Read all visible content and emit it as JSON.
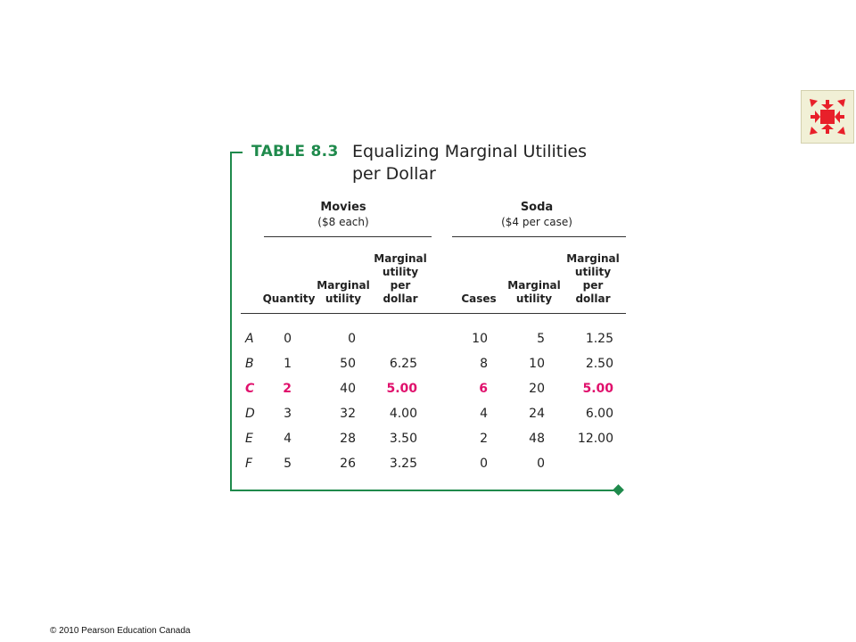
{
  "table": {
    "label": "TABLE  8.3",
    "title": "Equalizing Marginal Utilities per Dollar",
    "groups": {
      "movies": {
        "name": "Movies",
        "sub": "($8 each)"
      },
      "soda": {
        "name": "Soda",
        "sub": "($4 per case)"
      }
    },
    "columns": {
      "quantity": "Quantity",
      "mu_movies": [
        "Marginal",
        "utility"
      ],
      "mupd_movies": [
        "Marginal",
        "utility",
        "per",
        "dollar"
      ],
      "cases": "Cases",
      "mu_soda": [
        "Marginal",
        "utility"
      ],
      "mupd_soda": [
        "Marginal",
        "utility",
        "per",
        "dollar"
      ]
    },
    "rows": [
      {
        "letter": "A",
        "quantity": "0",
        "mu_movies": "0",
        "mupd_movies": "",
        "cases": "10",
        "mu_soda": "5",
        "mupd_soda": "1.25",
        "highlight": false
      },
      {
        "letter": "B",
        "quantity": "1",
        "mu_movies": "50",
        "mupd_movies": "6.25",
        "cases": "8",
        "mu_soda": "10",
        "mupd_soda": "2.50",
        "highlight": false
      },
      {
        "letter": "C",
        "quantity": "2",
        "mu_movies": "40",
        "mupd_movies": "5.00",
        "cases": "6",
        "mu_soda": "20",
        "mupd_soda": "5.00",
        "highlight": true
      },
      {
        "letter": "D",
        "quantity": "3",
        "mu_movies": "32",
        "mupd_movies": "4.00",
        "cases": "4",
        "mu_soda": "24",
        "mupd_soda": "6.00",
        "highlight": false
      },
      {
        "letter": "E",
        "quantity": "4",
        "mu_movies": "28",
        "mupd_movies": "3.50",
        "cases": "2",
        "mu_soda": "48",
        "mupd_soda": "12.00",
        "highlight": false
      },
      {
        "letter": "F",
        "quantity": "5",
        "mu_movies": "26",
        "mupd_movies": "3.25",
        "cases": "0",
        "mu_soda": "0",
        "mupd_soda": "",
        "highlight": false
      }
    ]
  },
  "nav_icon": "fullscreen-arrows-icon",
  "copyright": "© 2010 Pearson Education Canada",
  "colors": {
    "frame": "#1f8a4c",
    "highlight": "#e0106c",
    "icon": "#e8202a"
  }
}
